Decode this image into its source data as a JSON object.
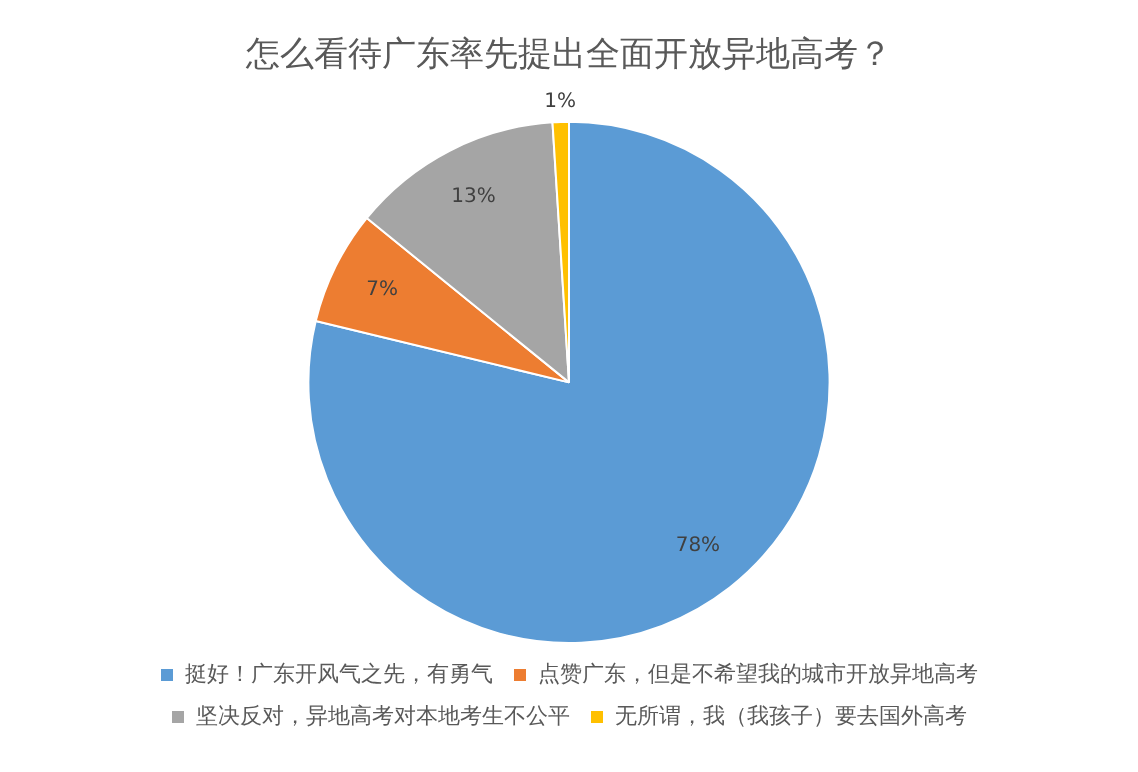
{
  "chart_data": {
    "type": "pie",
    "title": "怎么看待广东率先提出全面开放异地高考？",
    "categories": [
      "挺好！广东开风气之先，有勇气",
      "点赞广东，但是不希望我的城市开放异地高考",
      "坚决反对，异地高考对本地考生不公平",
      "无所谓，我（我孩子）要去国外高考"
    ],
    "values": [
      78,
      7,
      13,
      1
    ],
    "colors": [
      "#5b9bd5",
      "#ed7d31",
      "#a5a5a5",
      "#ffc000"
    ],
    "value_labels": [
      "78%",
      "7%",
      "13%",
      "1%"
    ],
    "legend": "bottom"
  }
}
